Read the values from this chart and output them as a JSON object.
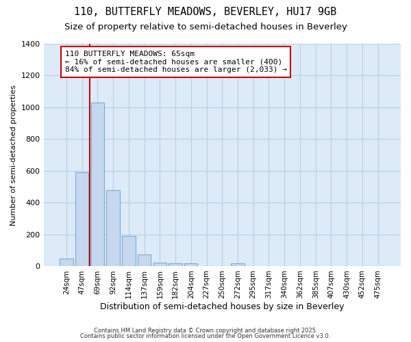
{
  "title_line1": "110, BUTTERFLY MEADOWS, BEVERLEY, HU17 9GB",
  "title_line2": "Size of property relative to semi-detached houses in Beverley",
  "xlabel": "Distribution of semi-detached houses by size in Beverley",
  "ylabel": "Number of semi-detached properties",
  "bin_labels": [
    "24sqm",
    "47sqm",
    "69sqm",
    "92sqm",
    "114sqm",
    "137sqm",
    "159sqm",
    "182sqm",
    "204sqm",
    "227sqm",
    "250sqm",
    "272sqm",
    "295sqm",
    "317sqm",
    "340sqm",
    "362sqm",
    "385sqm",
    "407sqm",
    "430sqm",
    "452sqm",
    "475sqm"
  ],
  "bar_values": [
    50,
    590,
    1030,
    480,
    190,
    75,
    25,
    20,
    20,
    0,
    0,
    20,
    0,
    0,
    0,
    0,
    0,
    0,
    0,
    0,
    0
  ],
  "bar_color": "#c5d8f0",
  "bar_edgecolor": "#7aaad4",
  "grid_color": "#b8cfe8",
  "plot_bg_color": "#ddeaf7",
  "fig_bg_color": "#ffffff",
  "annotation_title": "110 BUTTERFLY MEADOWS: 65sqm",
  "annotation_line2": "← 16% of semi-detached houses are smaller (400)",
  "annotation_line3": "84% of semi-detached houses are larger (2,033) →",
  "vline_color": "#cc0000",
  "annotation_box_edgecolor": "#cc0000",
  "footnote1": "Contains HM Land Registry data © Crown copyright and database right 2025.",
  "footnote2": "Contains public sector information licensed under the Open Government Licence v3.0.",
  "ylim": [
    0,
    1400
  ],
  "yticks": [
    0,
    200,
    400,
    600,
    800,
    1000,
    1200,
    1400
  ],
  "vline_x": 1.5
}
